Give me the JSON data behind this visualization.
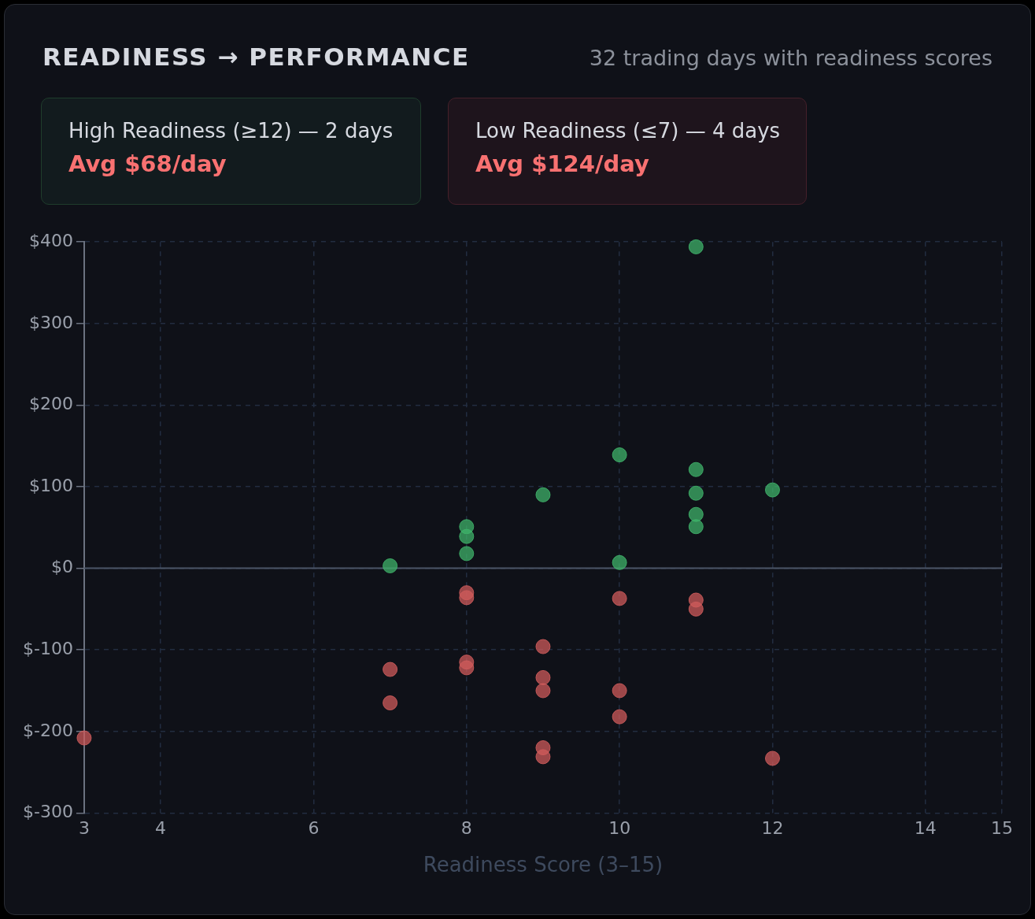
{
  "chart_data": {
    "type": "scatter",
    "title": "READINESS → PERFORMANCE",
    "subtitle": "32 trading days with readiness scores",
    "annotations": [
      "High Readiness (≥12) — 2 days",
      "Avg $68/day",
      "Low Readiness (≤7) — 4 days",
      "Avg $124/day"
    ],
    "xlabel": "Readiness Score (3–15)",
    "series": [
      {
        "color": "#3fb46a",
        "x": [
          7,
          8,
          8,
          8,
          9,
          10,
          10,
          11,
          11,
          11,
          11,
          11,
          12
        ],
        "values": [
          3,
          51,
          39,
          18,
          90,
          139,
          7,
          394,
          121,
          92,
          66,
          51,
          96
        ]
      },
      {
        "color": "#d05c5c",
        "x": [
          3,
          7,
          7,
          8,
          8,
          8,
          8,
          9,
          9,
          9,
          9,
          9,
          10,
          10,
          10,
          11,
          11,
          12
        ],
        "values": [
          -208,
          -124,
          -165,
          -30,
          -36,
          -115,
          -122,
          -96,
          -134,
          -150,
          -220,
          -231,
          -37,
          -150,
          -182,
          -39,
          -50,
          -233
        ]
      }
    ],
    "xlim": [
      3,
      15
    ],
    "xticks": [
      3,
      4,
      6,
      8,
      10,
      12,
      14,
      15
    ],
    "ylim": [
      -300,
      400
    ],
    "yticks": [
      {
        "value": -300,
        "label": "$-300"
      },
      {
        "value": -200,
        "label": "$-200"
      },
      {
        "value": -100,
        "label": "$-100"
      },
      {
        "value": 0,
        "label": "$0"
      },
      {
        "value": 100,
        "label": "$100"
      },
      {
        "value": 200,
        "label": "$200"
      },
      {
        "value": 300,
        "label": "$300"
      },
      {
        "value": 400,
        "label": "$400"
      }
    ],
    "grid": true,
    "marker": "circle",
    "legend": false,
    "ref_lines": [
      {
        "axis": "y",
        "value": 0,
        "color": "#4b5566"
      }
    ]
  }
}
